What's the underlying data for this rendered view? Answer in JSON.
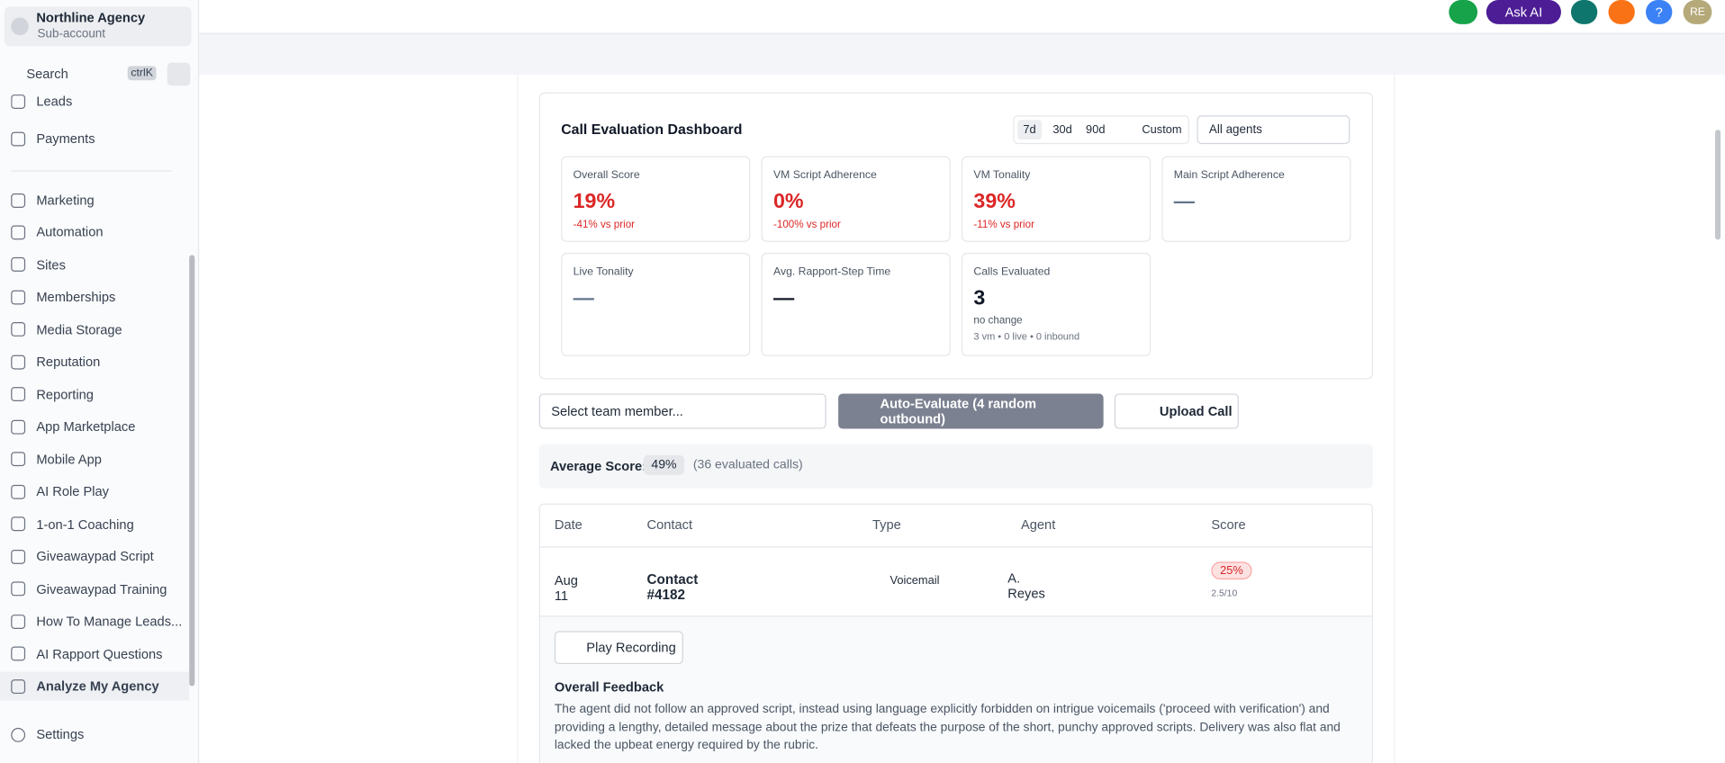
{
  "sidebar": {
    "account": {
      "name": "Northline Agency",
      "type": "Sub-account"
    },
    "search": "Search",
    "shortcut": "ctrlK",
    "top_items": [
      "Leads",
      "Payments"
    ],
    "items": [
      "Marketing",
      "Automation",
      "Sites",
      "Memberships",
      "Media Storage",
      "Reputation",
      "Reporting",
      "App Marketplace",
      "Mobile App",
      "AI Role Play",
      "1-on-1 Coaching",
      "Giveawaypad Script",
      "Giveawaypad Training",
      "How To Manage Leads...",
      "AI Rapport Questions",
      "Analyze My Agency"
    ],
    "settings": "Settings"
  },
  "topbar": {
    "ask_ai": "Ask AI",
    "help": "?",
    "avatar": "RE"
  },
  "dashboard": {
    "title": "Call Evaluation Dashboard",
    "ranges": [
      "7d",
      "30d",
      "90d",
      "Custom"
    ],
    "agent_filter": "All agents",
    "metrics": [
      {
        "label": "Overall Score",
        "value": "19%",
        "change": "-41% vs prior"
      },
      {
        "label": "VM Script Adherence",
        "value": "0%",
        "change": "-100% vs prior"
      },
      {
        "label": "VM Tonality",
        "value": "39%",
        "change": "-11% vs prior"
      },
      {
        "label": "Main Script Adherence",
        "value": "—"
      },
      {
        "label": "Live Tonality",
        "value": "—"
      },
      {
        "label": "Avg. Rapport-Step Time",
        "value": "—"
      },
      {
        "label": "Calls Evaluated",
        "value": "3",
        "change": "no change",
        "detail": "3 vm • 0 live • 0 inbound"
      }
    ]
  },
  "controls": {
    "team_select": "Select team member...",
    "auto_evaluate": "Auto-Evaluate (4 random outbound)",
    "upload": "Upload Call"
  },
  "average": {
    "label": "Average Score:",
    "value": "49%",
    "note": "(36 evaluated calls)"
  },
  "table": {
    "columns": [
      "Date",
      "Contact",
      "Type",
      "Agent",
      "Score"
    ],
    "rows": [
      {
        "date": "Aug 11",
        "contact": "Contact #4182",
        "type": "Voicemail",
        "agent": "A. Reyes",
        "score": "25%",
        "raw": "2.5/10"
      }
    ]
  },
  "detail": {
    "play": "Play Recording",
    "heading": "Overall Feedback",
    "text": "The agent did not follow an approved script, instead using language explicitly forbidden on intrigue voicemails ('proceed with verification') and providing a lengthy, detailed message about the prize that defeats the purpose of the short, punchy approved scripts. Delivery was also flat and lacked the upbeat energy required by the rubric."
  }
}
